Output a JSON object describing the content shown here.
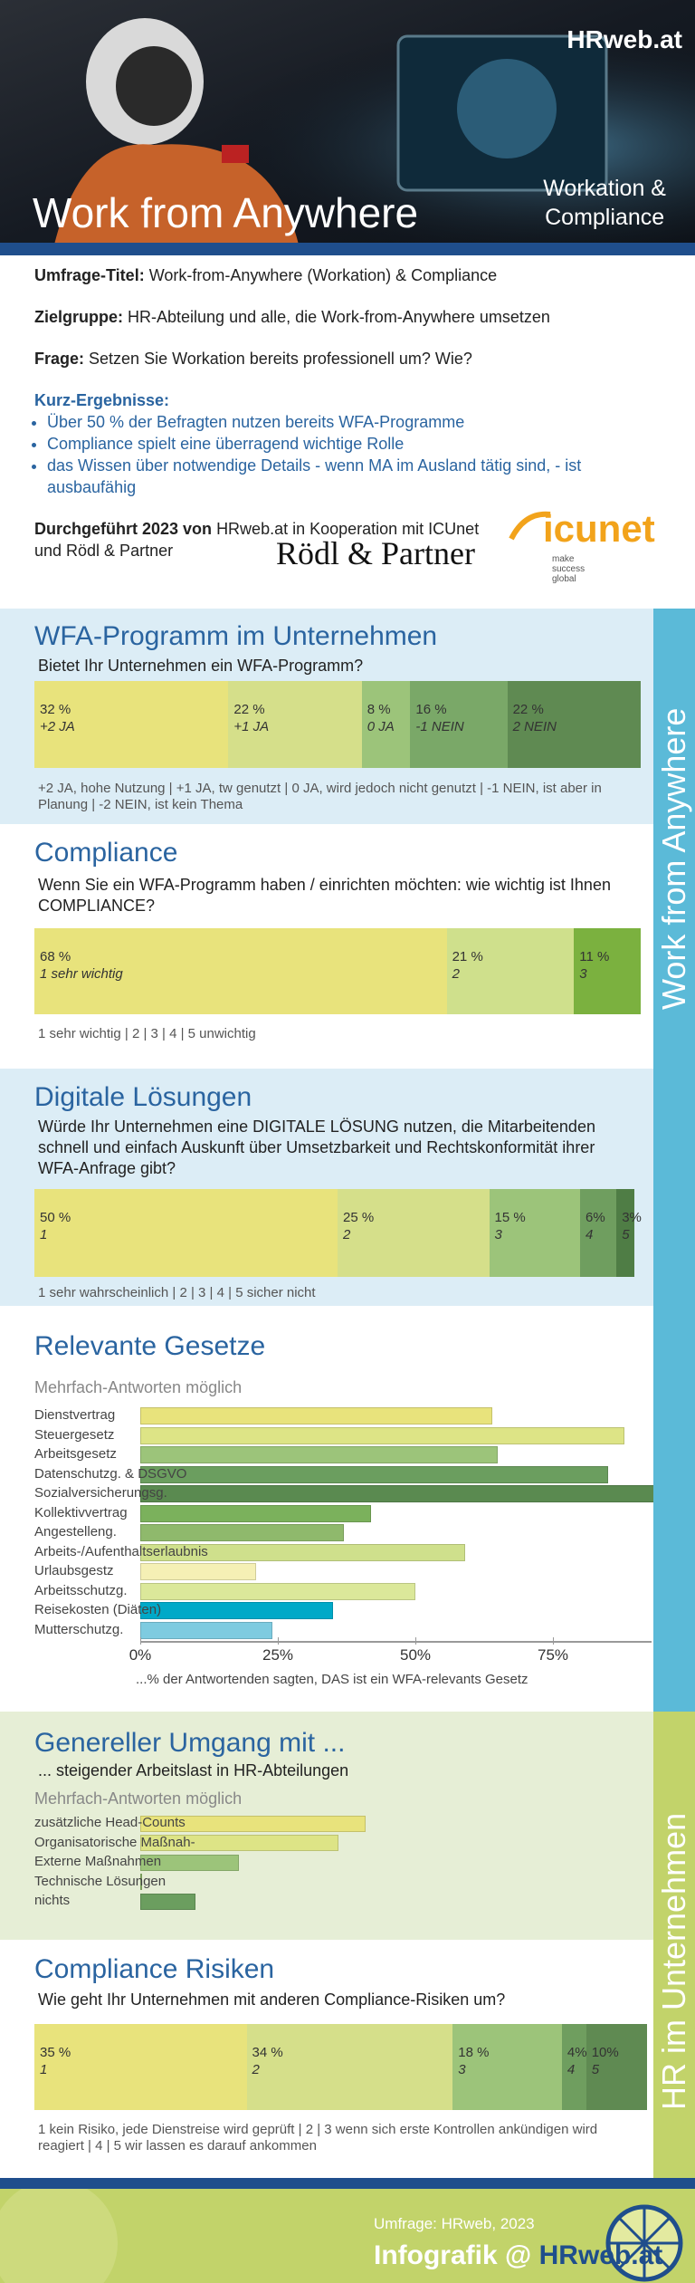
{
  "header": {
    "brand": "HRweb.at",
    "title": "Work from Anywhere",
    "subtitle_lines": [
      "Workation &",
      "Compliance"
    ]
  },
  "intro": {
    "items": [
      {
        "label": "Umfrage-Titel:",
        "text": "Work-from-Anywhere (Workation) & Compliance"
      },
      {
        "label": "Zielgruppe:",
        "text": "HR-Abteilung und alle, die Work-from-Anywhere umsetzen"
      },
      {
        "label": "Frage:",
        "text": "Setzen Sie Workation bereits professionell um? Wie?"
      }
    ],
    "results_heading": "Kurz-Ergebnisse:",
    "results": [
      "Über 50 % der Befragten nutzen bereits WFA-Programme",
      "Compliance spielt eine überragend wichtige Rolle",
      "das Wissen über notwendige Details - wenn MA im Ausland tätig sind, - ist ausbaufähig"
    ],
    "conducted_label": "Durchgeführt 2023 von",
    "conducted_text": "HRweb.at in Kooperation mit ICUnet und Rödl & Partner"
  },
  "logos": {
    "roedl": "Rödl & Partner",
    "icunet": "icunet",
    "icunet_tagline": "make success global"
  },
  "side_labels": [
    "Work from Anywhere",
    "HR im Unternehmen"
  ],
  "sections": [
    {
      "title": "WFA-Programm im Unternehmen",
      "question": "Bietet Ihr Unternehmen ein WFA-Programm?",
      "chart": {
        "type": "stacked",
        "xlim": [
          0,
          100
        ],
        "categories": [
          "+2 JA",
          "+1 JA",
          "0 JA",
          "-1 NEIN",
          "2 NEIN"
        ],
        "values": [
          32,
          22,
          8,
          16,
          22
        ],
        "value_labels": [
          "32 %",
          "22 %",
          "8 %",
          "16 %",
          "22 %"
        ],
        "colors": [
          "#e8e37c",
          "#d5df8a",
          "#9cc47a",
          "#7aa868",
          "#5f8a52"
        ]
      },
      "legend": "+2 JA, hohe Nutzung | +1 JA, tw genutzt | 0 JA, wird jedoch nicht genutzt | -1 NEIN, ist aber in Planung | -2 NEIN, ist kein Thema"
    },
    {
      "title": "Compliance",
      "question": "Wenn Sie ein WFA-Programm haben / einrichten möchten: wie wichtig ist Ihnen COMPLIANCE?",
      "chart": {
        "type": "stacked",
        "xlim": [
          0,
          100
        ],
        "categories": [
          "1 sehr wichtig",
          "2",
          "3"
        ],
        "values": [
          68,
          21,
          11
        ],
        "value_labels": [
          "68 %",
          "21 %",
          "11 %"
        ],
        "colors": [
          "#e8e37c",
          "#cfe08c",
          "#7bb13f"
        ]
      },
      "legend": "1 sehr wichtig | 2 | 3 | 4 | 5 unwichtig"
    },
    {
      "title": "Digitale Lösungen",
      "question": "Würde Ihr Unternehmen eine DIGITALE LÖSUNG nutzen, die Mitarbeitenden schnell und einfach Auskunft über Umsetzbarkeit und Rechtskonformität ihrer WFA-Anfrage gibt?",
      "chart": {
        "type": "stacked",
        "xlim": [
          0,
          100
        ],
        "categories": [
          "1",
          "2",
          "3",
          "4",
          "5"
        ],
        "values": [
          50,
          25,
          15,
          6,
          3
        ],
        "value_labels": [
          "50 %",
          "25 %",
          "15 %",
          "6%",
          "3%"
        ],
        "colors": [
          "#e8e37c",
          "#d5df8a",
          "#9cc47a",
          "#6f9e5f",
          "#4f7d45"
        ]
      },
      "legend": "1 sehr wahrscheinlich | 2 | 3 | 4 | 5 sicher nicht"
    },
    {
      "title": "Relevante Gesetze",
      "subtitle": "Mehrfach-Antworten möglich",
      "chart": {
        "type": "hbar",
        "xlim": [
          0,
          100
        ],
        "xticks": [
          {
            "value": 0,
            "label": "0%"
          },
          {
            "value": 25,
            "label": "25%"
          },
          {
            "value": 50,
            "label": "50%"
          },
          {
            "value": 75,
            "label": "75%"
          }
        ],
        "xlabel": "...% der Antwortenden sagten, DAS ist ein WFA-relevants Gesetz",
        "categories": [
          "Dienstvertrag",
          "Steuergesetz",
          "Arbeitsgesetz",
          "Datenschutzg. & DSGVO",
          "Sozialversicherungsg.",
          "Kollektivvertrag",
          "Angestelleng.",
          "Arbeits-/Aufenthaltserlaubnis",
          "Urlaubsgestz",
          "Arbeitsschutzg.",
          "Reisekosten (Diäten)",
          "Mutterschutzg."
        ],
        "values": [
          64,
          88,
          65,
          85,
          94,
          42,
          37,
          59,
          21,
          50,
          35,
          24
        ],
        "colors": [
          "#e8e37c",
          "#dde486",
          "#9cc47a",
          "#6b9e5f",
          "#5a8a50",
          "#7bb15c",
          "#8fb96c",
          "#cfe08c",
          "#f5f0b5",
          "#dbe89a",
          "#00a9c8",
          "#7ecbe0"
        ]
      }
    },
    {
      "title": "Genereller Umgang mit ...",
      "question": "... steigender Arbeitslast in HR-Abteilungen",
      "subtitle": "Mehrfach-Antworten möglich",
      "chart": {
        "type": "hbar",
        "xlim": [
          0,
          100
        ],
        "categories": [
          "zusätzliche Head-Counts",
          "Organisatorische Maßnah-",
          "Externe Maßnahmen",
          "Technische Lösungen",
          "nichts"
        ],
        "values": [
          41,
          36,
          18,
          0,
          10
        ],
        "colors": [
          "#e8e37c",
          "#dde486",
          "#9cc47a",
          "#8fb96c",
          "#6b9e5f"
        ]
      }
    },
    {
      "title": "Compliance Risiken",
      "question": "Wie geht Ihr Unternehmen mit anderen Compliance-Risiken um?",
      "chart": {
        "type": "stacked",
        "xlim": [
          0,
          100
        ],
        "categories": [
          "1",
          "2",
          "3",
          "4",
          "5"
        ],
        "values": [
          35,
          34,
          18,
          4,
          10
        ],
        "value_labels": [
          "35 %",
          "34 %",
          "18 %",
          "4%",
          "10%"
        ],
        "colors": [
          "#e8e37c",
          "#d5df8a",
          "#9cc47a",
          "#6f9e5f",
          "#5f8a52"
        ]
      },
      "legend": "1 kein Risiko, jede Dienstreise wird geprüft | 2 | 3 wenn sich erste Kontrollen ankündigen wird reagiert | 4 | 5 wir lassen es darauf ankommen"
    }
  ],
  "footer": {
    "source": "Umfrage: HRweb, 2023",
    "brand_prefix": "Infografik @",
    "brand": "HRweb.at"
  }
}
